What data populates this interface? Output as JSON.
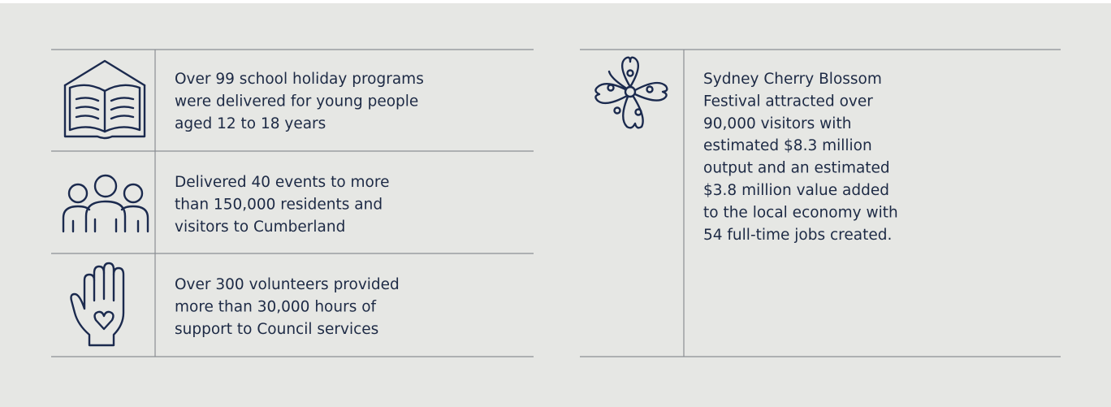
{
  "left_items": [
    {
      "lines": [
        "Over 99 school holiday programs",
        "were delivered for young people",
        "aged 12 to 18 years"
      ]
    },
    {
      "lines": [
        "Delivered 40 events to more",
        "than 150,000 residents and",
        "visitors to Cumberland"
      ]
    },
    {
      "lines": [
        "Over 300 volunteers provided",
        "more than 30,000 hours of",
        "support to Council services"
      ]
    }
  ],
  "right_item": {
    "lines": [
      "Sydney Cherry Blossom",
      "Festival attracted over",
      "90,000 visitors with",
      "estimated $8.3 million",
      "output and an estimated",
      "$3.8 million value added",
      "to the local economy with",
      "54 full-time jobs created."
    ]
  }
}
